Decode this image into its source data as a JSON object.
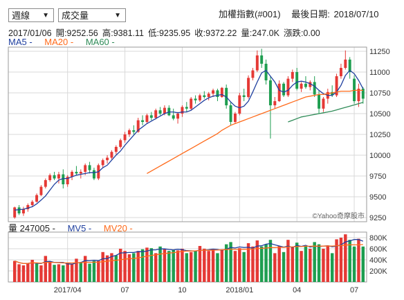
{
  "controls": {
    "period": {
      "value": "週線"
    },
    "indicator": {
      "value": "成交量"
    }
  },
  "header": {
    "index_name": "加權指數(#001)",
    "last_date_label": "最後日期:",
    "last_date": "2018/07/10"
  },
  "quote": {
    "date": "2017/01/06",
    "open_label": "開:",
    "open": "9252.56",
    "high_label": "高:",
    "high": "9381.11",
    "low_label": "低:",
    "low": "9235.95",
    "close_label": "收:",
    "close": "9372.22",
    "volume_label": "量:",
    "volume": "247.0K",
    "change_label": "漲跌:",
    "change": "0.00"
  },
  "ma_legend": [
    {
      "label": "MA5 -",
      "color": "#1f3f9f"
    },
    {
      "label": "MA20 -",
      "color": "#ff6a1a"
    },
    {
      "label": "MA60 -",
      "color": "#2e8b57"
    }
  ],
  "vol_legend": {
    "volume_label": "量 247005 -",
    "mv5_label": "MV5 -",
    "mv5_color": "#1f3f9f",
    "mv20_label": "MV20 -",
    "mv20_color": "#ff6a1a"
  },
  "watermark": "©Yahoo奇摩股市",
  "colors": {
    "up": "#e53935",
    "down": "#1e9e50",
    "grid": "#d9d9d9"
  },
  "chart_data": {
    "type": "candlestick",
    "price_axis": {
      "ticks": [
        "11250",
        "11000",
        "10750",
        "10500",
        "10250",
        "10000",
        "9750",
        "9500",
        "9250"
      ],
      "ylim": [
        9200,
        11300
      ]
    },
    "volume_axis": {
      "ticks": [
        "800K",
        "600K",
        "400K",
        "200K"
      ],
      "ylim": [
        0,
        900
      ]
    },
    "x_ticks": [
      "2017/04",
      "07",
      "10",
      "2018/01",
      "04",
      "07"
    ],
    "candles": [
      [
        9252,
        9381,
        9236,
        9372
      ],
      [
        9372,
        9400,
        9280,
        9300
      ],
      [
        9300,
        9380,
        9270,
        9350
      ],
      [
        9350,
        9420,
        9320,
        9400
      ],
      [
        9400,
        9460,
        9380,
        9440
      ],
      [
        9440,
        9540,
        9430,
        9520
      ],
      [
        9520,
        9640,
        9510,
        9620
      ],
      [
        9620,
        9720,
        9600,
        9700
      ],
      [
        9700,
        9780,
        9680,
        9760
      ],
      [
        9760,
        9800,
        9700,
        9720
      ],
      [
        9720,
        9800,
        9660,
        9770
      ],
      [
        9770,
        9830,
        9600,
        9650
      ],
      [
        9650,
        9760,
        9620,
        9740
      ],
      [
        9740,
        9820,
        9700,
        9800
      ],
      [
        9800,
        9870,
        9760,
        9780
      ],
      [
        9780,
        9830,
        9720,
        9800
      ],
      [
        9800,
        9900,
        9760,
        9880
      ],
      [
        9880,
        9920,
        9780,
        9820
      ],
      [
        9820,
        9850,
        9700,
        9720
      ],
      [
        9720,
        9900,
        9700,
        9880
      ],
      [
        9880,
        9960,
        9850,
        9940
      ],
      [
        9940,
        10000,
        9900,
        9970
      ],
      [
        9970,
        10060,
        9950,
        10040
      ],
      [
        10040,
        10120,
        10010,
        10100
      ],
      [
        10100,
        10200,
        10080,
        10180
      ],
      [
        10180,
        10280,
        10150,
        10250
      ],
      [
        10250,
        10320,
        10220,
        10300
      ],
      [
        10300,
        10360,
        10250,
        10280
      ],
      [
        10280,
        10450,
        10270,
        10420
      ],
      [
        10420,
        10480,
        10360,
        10400
      ],
      [
        10400,
        10500,
        10380,
        10480
      ],
      [
        10480,
        10520,
        10420,
        10450
      ],
      [
        10450,
        10560,
        10430,
        10540
      ],
      [
        10540,
        10580,
        10480,
        10500
      ],
      [
        10500,
        10600,
        10480,
        10570
      ],
      [
        10570,
        10600,
        10470,
        10480
      ],
      [
        10480,
        10560,
        10420,
        10440
      ],
      [
        10440,
        10520,
        10380,
        10500
      ],
      [
        10500,
        10600,
        10460,
        10580
      ],
      [
        10580,
        10640,
        10520,
        10560
      ],
      [
        10560,
        10700,
        10540,
        10680
      ],
      [
        10680,
        10720,
        10620,
        10660
      ],
      [
        10660,
        10740,
        10640,
        10720
      ],
      [
        10720,
        10770,
        10680,
        10700
      ],
      [
        10700,
        10760,
        10660,
        10740
      ],
      [
        10740,
        10800,
        10700,
        10780
      ],
      [
        10780,
        10800,
        10650,
        10700
      ],
      [
        10700,
        10820,
        10690,
        10810
      ],
      [
        10810,
        10850,
        10560,
        10600
      ],
      [
        10600,
        10640,
        10360,
        10400
      ],
      [
        10400,
        10520,
        10380,
        10500
      ],
      [
        10500,
        10750,
        10480,
        10720
      ],
      [
        10720,
        10800,
        10650,
        10700
      ],
      [
        10700,
        10960,
        10680,
        10930
      ],
      [
        10930,
        11050,
        10900,
        11020
      ],
      [
        11020,
        11260,
        11000,
        11200
      ],
      [
        11200,
        11280,
        11050,
        11100
      ],
      [
        11100,
        11150,
        10850,
        10900
      ],
      [
        10900,
        10950,
        10200,
        10600
      ],
      [
        10600,
        10700,
        10560,
        10650
      ],
      [
        10650,
        10900,
        10640,
        10860
      ],
      [
        10860,
        10880,
        10700,
        10720
      ],
      [
        10720,
        10950,
        10700,
        10920
      ],
      [
        10920,
        11030,
        10880,
        11000
      ],
      [
        11000,
        11050,
        10780,
        10800
      ],
      [
        10800,
        10880,
        10760,
        10860
      ],
      [
        10860,
        10950,
        10800,
        10820
      ],
      [
        10820,
        10900,
        10780,
        10880
      ],
      [
        10880,
        10950,
        10700,
        10730
      ],
      [
        10730,
        10780,
        10500,
        10560
      ],
      [
        10560,
        10700,
        10520,
        10680
      ],
      [
        10680,
        10800,
        10620,
        10760
      ],
      [
        10760,
        10840,
        10700,
        10720
      ],
      [
        10720,
        10980,
        10700,
        10950
      ],
      [
        10950,
        11100,
        10920,
        11050
      ],
      [
        11050,
        11260,
        11030,
        11150
      ],
      [
        11150,
        11180,
        10920,
        11000
      ],
      [
        10920,
        10960,
        10620,
        10650
      ],
      [
        10650,
        10860,
        10580,
        10800
      ],
      [
        10800,
        10820,
        10620,
        10680
      ]
    ],
    "volumes": [
      [
        380,
        1
      ],
      [
        320,
        1
      ],
      [
        300,
        1
      ],
      [
        340,
        1
      ],
      [
        400,
        1
      ],
      [
        330,
        0
      ],
      [
        300,
        1
      ],
      [
        470,
        1
      ],
      [
        360,
        1
      ],
      [
        310,
        0
      ],
      [
        320,
        1
      ],
      [
        300,
        0
      ],
      [
        350,
        1
      ],
      [
        330,
        1
      ],
      [
        420,
        1
      ],
      [
        360,
        0
      ],
      [
        470,
        1
      ],
      [
        330,
        0
      ],
      [
        380,
        0
      ],
      [
        380,
        1
      ],
      [
        540,
        1
      ],
      [
        480,
        1
      ],
      [
        520,
        1
      ],
      [
        480,
        0
      ],
      [
        600,
        1
      ],
      [
        560,
        1
      ],
      [
        500,
        1
      ],
      [
        520,
        0
      ],
      [
        560,
        1
      ],
      [
        590,
        0
      ],
      [
        620,
        1
      ],
      [
        610,
        0
      ],
      [
        520,
        1
      ],
      [
        640,
        0
      ],
      [
        600,
        1
      ],
      [
        560,
        0
      ],
      [
        580,
        0
      ],
      [
        570,
        1
      ],
      [
        600,
        1
      ],
      [
        520,
        0
      ],
      [
        540,
        1
      ],
      [
        560,
        0
      ],
      [
        650,
        1
      ],
      [
        600,
        1
      ],
      [
        560,
        1
      ],
      [
        600,
        1
      ],
      [
        520,
        0
      ],
      [
        590,
        1
      ],
      [
        680,
        0
      ],
      [
        720,
        0
      ],
      [
        560,
        1
      ],
      [
        610,
        1
      ],
      [
        540,
        0
      ],
      [
        700,
        1
      ],
      [
        640,
        1
      ],
      [
        750,
        1
      ],
      [
        640,
        0
      ],
      [
        680,
        0
      ],
      [
        760,
        0
      ],
      [
        520,
        1
      ],
      [
        650,
        1
      ],
      [
        540,
        0
      ],
      [
        760,
        1
      ],
      [
        640,
        1
      ],
      [
        710,
        0
      ],
      [
        560,
        1
      ],
      [
        640,
        0
      ],
      [
        600,
        1
      ],
      [
        720,
        0
      ],
      [
        680,
        0
      ],
      [
        600,
        1
      ],
      [
        660,
        1
      ],
      [
        520,
        0
      ],
      [
        770,
        1
      ],
      [
        800,
        1
      ],
      [
        860,
        1
      ],
      [
        760,
        0
      ],
      [
        640,
        0
      ],
      [
        780,
        1
      ],
      [
        640,
        0
      ]
    ],
    "ma5": [
      9340,
      9345,
      9350,
      9365,
      9380,
      9415,
      9460,
      9510,
      9580,
      9650,
      9700,
      9720,
      9720,
      9740,
      9760,
      9770,
      9780,
      9790,
      9790,
      9800,
      9850,
      9880,
      9940,
      10000,
      10050,
      10120,
      10180,
      10240,
      10300,
      10340,
      10380,
      10410,
      10440,
      10470,
      10500,
      10520,
      10520,
      10510,
      10520,
      10520,
      10540,
      10580,
      10620,
      10660,
      10690,
      10710,
      10720,
      10730,
      10700,
      10640,
      10590,
      10570,
      10590,
      10650,
      10760,
      10880,
      10990,
      11020,
      10950,
      10880,
      10780,
      10760,
      10780,
      10840,
      10880,
      10890,
      10880,
      10860,
      10830,
      10780,
      10740,
      10720,
      10720,
      10760,
      10840,
      10960,
      11020,
      10980,
      10900,
      10800
    ],
    "ma20_start": 30,
    "ma20": [
      9780,
      9810,
      9840,
      9870,
      9900,
      9930,
      9960,
      9990,
      10020,
      10050,
      10080,
      10110,
      10140,
      10170,
      10200,
      10230,
      10260,
      10300,
      10330,
      10360,
      10380,
      10400,
      10420,
      10440,
      10460,
      10480,
      10500,
      10520,
      10540,
      10560,
      10580,
      10600,
      10620,
      10640,
      10660,
      10680,
      10700,
      10710,
      10720,
      10730,
      10730,
      10740,
      10750,
      10760,
      10770,
      10770,
      10770,
      10780,
      10780,
      10780
    ],
    "ma60_start": 62,
    "ma60": [
      10400,
      10420,
      10440,
      10460,
      10470,
      10480,
      10490,
      10500,
      10510,
      10520,
      10530,
      10545,
      10560,
      10575,
      10590,
      10605,
      10620,
      10635
    ]
  }
}
